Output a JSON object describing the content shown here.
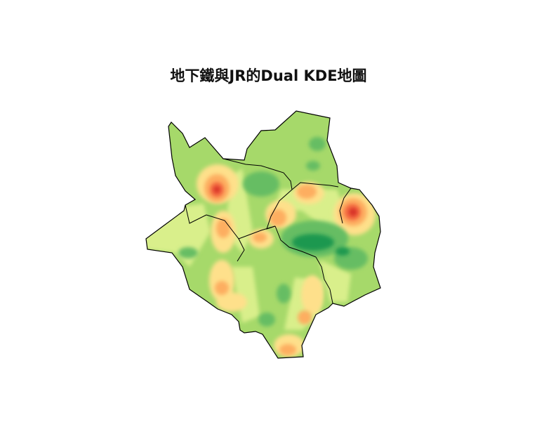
{
  "title": "地下鐵與JR的Dual KDE地圖",
  "map": {
    "type": "dual kernel density estimate choropleth",
    "palette": [
      "#1a9850",
      "#66bd63",
      "#a6d96a",
      "#d9ef8b",
      "#fee08b",
      "#fdae61",
      "#f46d43",
      "#d73027"
    ],
    "boundary_color": "#000000",
    "background": "#ffffff"
  }
}
